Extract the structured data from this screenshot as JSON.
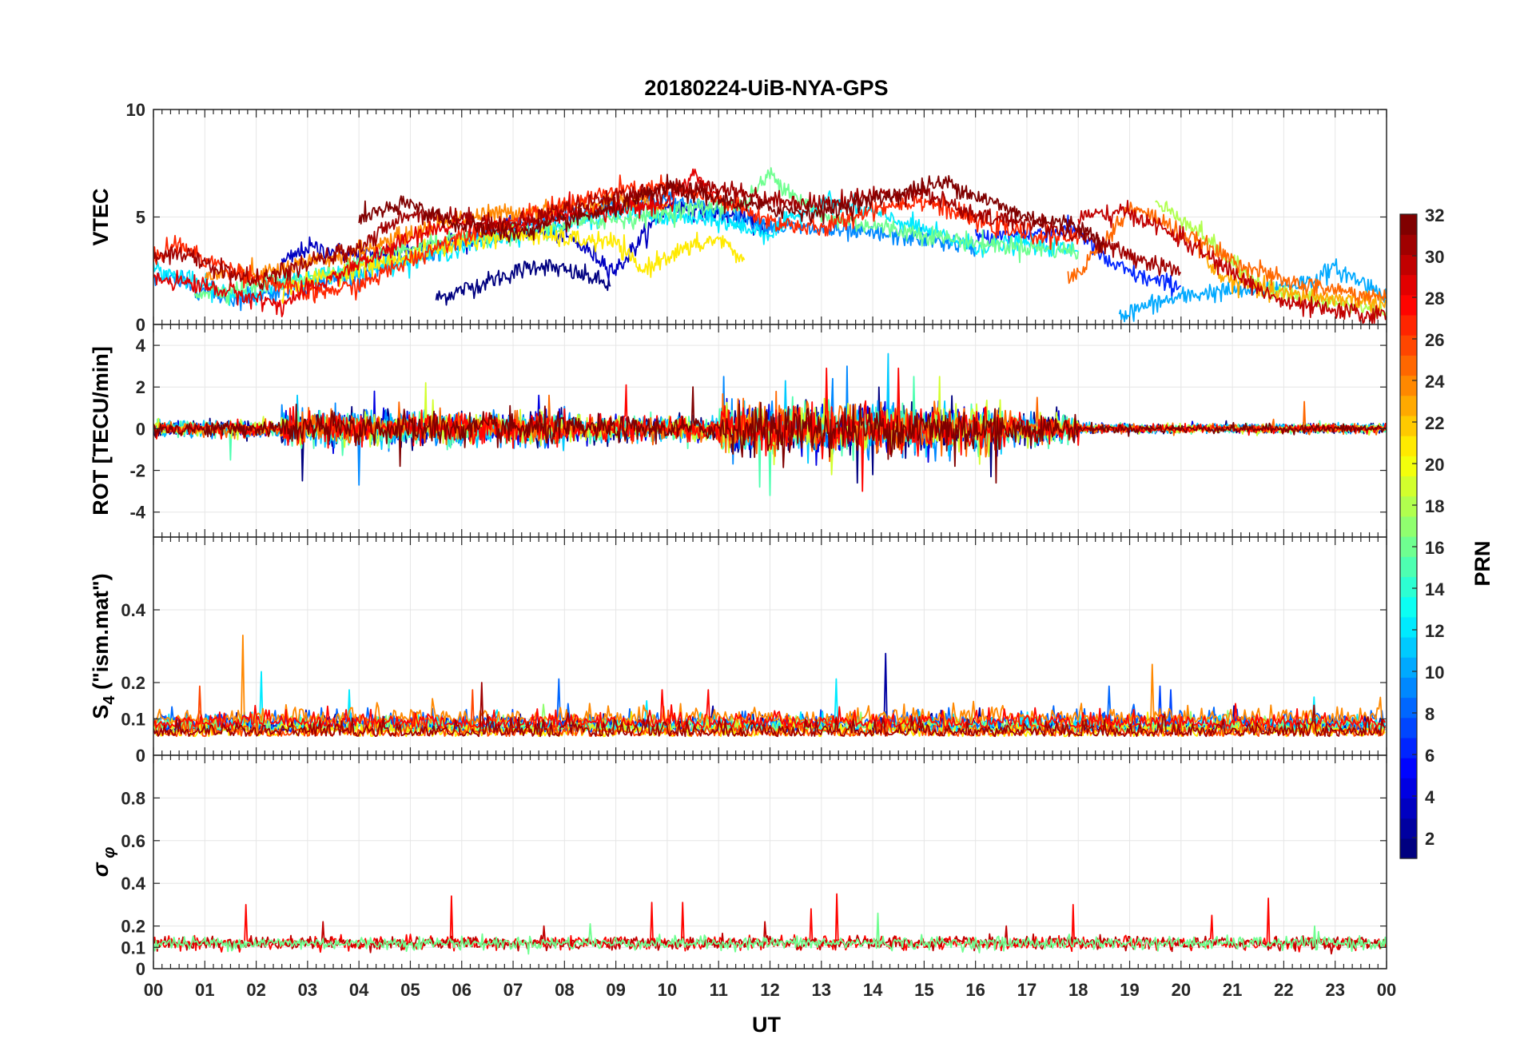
{
  "figure": {
    "title": "20180224-UiB-NYA-GPS",
    "xlabel": "UT",
    "x_tick_labels": [
      "00",
      "01",
      "02",
      "03",
      "04",
      "05",
      "06",
      "07",
      "08",
      "09",
      "10",
      "11",
      "12",
      "13",
      "14",
      "15",
      "16",
      "17",
      "18",
      "19",
      "20",
      "21",
      "22",
      "23",
      "00"
    ]
  },
  "colorbar": {
    "label": "PRN",
    "range": [
      1,
      32
    ],
    "tick_labels": [
      "2",
      "4",
      "6",
      "8",
      "10",
      "12",
      "14",
      "16",
      "18",
      "20",
      "22",
      "24",
      "26",
      "28",
      "30",
      "32"
    ],
    "colormap": "jet",
    "color_stops": [
      "#00008f",
      "#0000ff",
      "#00ffff",
      "#ffff00",
      "#ff0000",
      "#800000"
    ]
  },
  "chart_data": [
    {
      "type": "line",
      "panel": "vtec",
      "ylabel": "VTEC",
      "ylim": [
        0,
        10
      ],
      "xlim": [
        0,
        24
      ],
      "y_ticks": [
        0,
        5,
        10
      ],
      "y_tick_labels": [
        "0",
        "5",
        "10"
      ],
      "grid": true,
      "color_by": "PRN",
      "series": [
        {
          "prn": 1,
          "x": [
            5.5,
            6.5,
            7.5,
            8.5,
            8.9
          ],
          "y": [
            1.2,
            2.0,
            2.8,
            2.2,
            1.8
          ]
        },
        {
          "prn": 3,
          "x": [
            2.5,
            3.0,
            4.0,
            5.0,
            6.0,
            7.0,
            8.0,
            9.0,
            10.0,
            11.0,
            12.0
          ],
          "y": [
            2.8,
            3.6,
            3.2,
            3.5,
            4.0,
            4.5,
            4.2,
            2.5,
            5.5,
            5.2,
            4.5
          ]
        },
        {
          "prn": 6,
          "x": [
            16.0,
            17.0,
            18.0,
            18.5,
            19.0,
            19.5,
            20.0
          ],
          "y": [
            4.0,
            4.2,
            4.4,
            3.0,
            2.4,
            2.0,
            1.8
          ]
        },
        {
          "prn": 9,
          "x": [
            0.0,
            0.5,
            1.0,
            1.5,
            2.0,
            3.0,
            4.0,
            5.0,
            6.0,
            7.0,
            8.0,
            9.0,
            10.0,
            11.0,
            12.0,
            13.0,
            14.0,
            15.0,
            16.0
          ],
          "y": [
            2.2,
            2.0,
            1.6,
            1.2,
            1.4,
            1.8,
            2.4,
            3.0,
            3.8,
            4.5,
            5.0,
            5.6,
            5.8,
            5.2,
            4.6,
            4.4,
            4.2,
            4.0,
            3.6
          ]
        },
        {
          "prn": 10,
          "x": [
            18.8,
            19.5,
            20.5,
            21.5,
            22.5,
            23.0,
            24.0
          ],
          "y": [
            0.4,
            1.0,
            1.5,
            1.6,
            2.0,
            2.6,
            1.4
          ]
        },
        {
          "prn": 12,
          "x": [
            0.0,
            0.5,
            1.0,
            1.5,
            2.0,
            3.0,
            4.0,
            5.0,
            6.0,
            7.0,
            8.0,
            9.0,
            10.0,
            11.0,
            12.0,
            13.0,
            14.0,
            15.0,
            16.0,
            17.0,
            18.0
          ],
          "y": [
            2.6,
            2.2,
            1.8,
            1.4,
            1.6,
            2.2,
            2.6,
            3.0,
            3.6,
            4.2,
            4.6,
            5.2,
            5.0,
            4.8,
            4.2,
            5.8,
            5.2,
            4.4,
            3.6,
            3.8,
            3.4
          ]
        },
        {
          "prn": 16,
          "x": [
            0.8,
            1.5,
            2.5,
            3.5,
            4.5,
            5.5,
            6.5,
            7.5,
            8.5,
            9.5,
            10.5,
            11.5,
            12.0,
            13.0,
            14.0,
            15.0,
            16.0,
            17.0,
            18.0
          ],
          "y": [
            1.5,
            1.6,
            2.0,
            2.4,
            3.2,
            3.8,
            4.0,
            4.4,
            4.8,
            5.0,
            5.4,
            5.6,
            7.0,
            5.0,
            4.6,
            4.2,
            3.8,
            3.6,
            3.4
          ]
        },
        {
          "prn": 18,
          "x": [
            19.5,
            20.0,
            20.5,
            21.0,
            21.5,
            22.0,
            23.0,
            24.0
          ],
          "y": [
            5.6,
            5.0,
            4.0,
            2.8,
            2.0,
            1.4,
            1.0,
            0.6
          ]
        },
        {
          "prn": 21,
          "x": [
            2.5,
            3.0,
            4.0,
            5.0,
            6.0,
            7.0,
            8.0,
            9.0,
            9.5,
            10.0,
            11.0,
            11.5
          ],
          "y": [
            1.5,
            2.0,
            2.6,
            3.2,
            3.8,
            4.2,
            4.0,
            3.8,
            2.5,
            3.2,
            4.0,
            3.0
          ]
        },
        {
          "prn": 23,
          "x": [
            20.5,
            21.0,
            21.5,
            22.0,
            23.0,
            24.0
          ],
          "y": [
            2.8,
            2.0,
            1.6,
            1.4,
            1.2,
            1.0
          ]
        },
        {
          "prn": 24,
          "x": [
            1.0,
            1.5,
            2.0,
            3.0,
            4.0,
            5.0,
            6.0,
            7.0,
            8.0,
            9.0,
            10.0
          ],
          "y": [
            2.2,
            2.4,
            2.3,
            2.8,
            3.4,
            4.2,
            5.0,
            5.2,
            5.4,
            5.8,
            5.6
          ]
        },
        {
          "prn": 25,
          "x": [
            17.8,
            18.5,
            19.0,
            19.5,
            20.0,
            21.0,
            22.0,
            23.0,
            24.0
          ],
          "y": [
            2.0,
            3.8,
            5.4,
            5.0,
            4.2,
            3.0,
            2.0,
            1.6,
            1.2
          ]
        },
        {
          "prn": 27,
          "x": [
            0.0,
            0.4,
            1.0,
            2.0,
            3.0,
            4.0,
            5.0,
            6.0,
            7.0,
            8.0,
            9.0,
            10.0,
            11.0,
            12.0,
            13.0,
            14.0,
            15.0,
            16.0,
            17.0,
            18.0
          ],
          "y": [
            3.0,
            3.8,
            3.0,
            2.2,
            1.4,
            1.8,
            3.0,
            4.2,
            4.8,
            5.6,
            6.2,
            6.4,
            5.8,
            4.8,
            4.4,
            5.4,
            5.8,
            4.8,
            4.2,
            4.0
          ]
        },
        {
          "prn": 29,
          "x": [
            0.0,
            1.0,
            2.0,
            2.5,
            3.0,
            4.0,
            5.0,
            6.0,
            7.0,
            8.0,
            9.0,
            10.0,
            10.5,
            11.0
          ],
          "y": [
            2.2,
            1.8,
            1.2,
            0.9,
            1.6,
            2.8,
            4.0,
            4.8,
            4.4,
            5.2,
            5.4,
            5.6,
            7.0,
            6.0
          ]
        },
        {
          "prn": 30,
          "x": [
            18.0,
            19.0,
            20.0,
            21.0,
            22.0,
            23.0,
            24.0
          ],
          "y": [
            5.0,
            5.2,
            4.0,
            2.4,
            1.0,
            0.6,
            0.4
          ]
        },
        {
          "prn": 31,
          "x": [
            0.0,
            0.5,
            1.0,
            2.0,
            3.0,
            4.0,
            5.0,
            6.0,
            7.0,
            8.0,
            9.0,
            10.0,
            11.0,
            12.0,
            13.0,
            14.0,
            15.0,
            16.0,
            17.0,
            18.0,
            19.0,
            20.0
          ],
          "y": [
            3.2,
            3.4,
            2.8,
            2.0,
            2.8,
            3.6,
            5.2,
            5.0,
            4.6,
            5.4,
            6.0,
            6.2,
            6.4,
            5.8,
            5.6,
            6.0,
            6.2,
            5.0,
            4.8,
            4.2,
            3.2,
            2.4
          ]
        },
        {
          "prn": 32,
          "x": [
            4.0,
            5.0,
            6.0,
            7.0,
            8.0,
            9.0,
            10.0,
            11.0,
            12.0,
            13.0,
            14.0,
            15.0,
            15.5,
            16.0,
            17.0,
            18.0,
            18.5
          ],
          "y": [
            5.0,
            5.6,
            4.6,
            4.2,
            4.8,
            5.4,
            6.4,
            5.8,
            5.4,
            5.2,
            5.8,
            6.4,
            6.6,
            6.0,
            5.0,
            4.6,
            3.8
          ]
        }
      ]
    },
    {
      "type": "line",
      "panel": "rot",
      "ylabel": "ROT [TECU/min]",
      "ylim": [
        -5.2,
        5.0
      ],
      "xlim": [
        0,
        24
      ],
      "y_ticks": [
        -4,
        -2,
        0,
        2,
        4
      ],
      "y_tick_labels": [
        "-4",
        "-2",
        "0",
        "2",
        "4"
      ],
      "grid": true,
      "color_by": "PRN",
      "series": [
        {
          "prn": 1,
          "x": [
            2.9,
            13.7,
            14.0,
            16.3
          ],
          "y": [
            -2.5,
            -2.6,
            -2.2,
            -2.3
          ]
        },
        {
          "prn": 4,
          "x": [
            4.3,
            7.5,
            14.3
          ],
          "y": [
            1.8,
            1.6,
            2.7
          ]
        },
        {
          "prn": 9,
          "x": [
            4.0,
            11.1,
            13.5
          ],
          "y": [
            -2.7,
            2.5,
            3.0
          ]
        },
        {
          "prn": 11,
          "x": [
            2.8,
            12.3,
            14.3
          ],
          "y": [
            1.6,
            2.3,
            3.6
          ]
        },
        {
          "prn": 15,
          "x": [
            1.5,
            11.8,
            12.0,
            14.8
          ],
          "y": [
            -1.5,
            -2.8,
            -3.2,
            2.5
          ]
        },
        {
          "prn": 19,
          "x": [
            5.3,
            13.2,
            15.3
          ],
          "y": [
            2.2,
            -2.2,
            2.5
          ]
        },
        {
          "prn": 25,
          "x": [
            7.7,
            17.2,
            22.4
          ],
          "y": [
            1.6,
            1.5,
            1.3
          ]
        },
        {
          "prn": 28,
          "x": [
            9.2,
            13.8,
            14.5,
            13.1
          ],
          "y": [
            2.1,
            -3.0,
            2.9,
            2.9
          ]
        },
        {
          "prn": 32,
          "x": [
            4.8,
            10.5,
            16.4,
            15.6
          ],
          "y": [
            -1.8,
            2.0,
            -2.6,
            -1.8
          ]
        }
      ]
    },
    {
      "type": "line",
      "panel": "s4",
      "ylabel": "S4 (\"ism.mat\")",
      "ylabel_main": "S",
      "ylabel_sub": "4",
      "ylabel_rest": " (\"ism.mat\")",
      "ylim": [
        0,
        0.6
      ],
      "xlim": [
        0,
        24
      ],
      "y_ticks": [
        0,
        0.1,
        0.2,
        0.4
      ],
      "y_tick_labels": [
        "0",
        "0.1",
        "0.2",
        "0.4"
      ],
      "grid": true,
      "color_by": "PRN",
      "series": [
        {
          "prn": 2,
          "x": [
            14.25
          ],
          "y": [
            0.28
          ]
        },
        {
          "prn": 7,
          "x": [
            19.6,
            19.8
          ],
          "y": [
            0.19,
            0.18
          ]
        },
        {
          "prn": 8,
          "x": [
            7.9,
            18.6
          ],
          "y": [
            0.21,
            0.19
          ]
        },
        {
          "prn": 12,
          "x": [
            2.1,
            3.8,
            13.3,
            22.6
          ],
          "y": [
            0.23,
            0.18,
            0.21,
            0.16
          ]
        },
        {
          "prn": 17,
          "x": [
            7.6,
            20.2
          ],
          "y": [
            0.14,
            0.12
          ]
        },
        {
          "prn": 21,
          "x": [
            9.3,
            15.4
          ],
          "y": [
            0.12,
            0.12
          ]
        },
        {
          "prn": 24,
          "x": [
            1.75,
            19.45
          ],
          "y": [
            0.33,
            0.25
          ]
        },
        {
          "prn": 26,
          "x": [
            0.9,
            6.2
          ],
          "y": [
            0.19,
            0.18
          ]
        },
        {
          "prn": 28,
          "x": [
            9.9,
            10.8
          ],
          "y": [
            0.18,
            0.18
          ]
        },
        {
          "prn": 31,
          "x": [
            6.4
          ],
          "y": [
            0.2
          ]
        }
      ]
    },
    {
      "type": "line",
      "panel": "sigma_phi",
      "ylabel": "σφ",
      "ylabel_main": "σ",
      "ylabel_sub": "φ",
      "ylim": [
        0,
        1.0
      ],
      "xlim": [
        0,
        24
      ],
      "y_ticks": [
        0,
        0.1,
        0.2,
        0.4,
        0.6,
        0.8
      ],
      "y_tick_labels": [
        "0",
        "0.1",
        "0.2",
        "0.4",
        "0.6",
        "0.8"
      ],
      "grid": true,
      "color_by": "PRN",
      "series": [
        {
          "prn": 28,
          "x": [
            1.8,
            5.8,
            9.7,
            10.3,
            12.8,
            13.3,
            17.9,
            20.6,
            21.7
          ],
          "y": [
            0.3,
            0.34,
            0.31,
            0.31,
            0.28,
            0.35,
            0.3,
            0.25,
            0.33
          ]
        },
        {
          "prn": 30,
          "x": [
            3.3,
            7.6,
            11.9,
            16.6
          ],
          "y": [
            0.22,
            0.2,
            0.22,
            0.2
          ]
        },
        {
          "prn": 16,
          "x": [
            8.5,
            14.1,
            22.6
          ],
          "y": [
            0.21,
            0.26,
            0.2
          ]
        }
      ]
    }
  ]
}
